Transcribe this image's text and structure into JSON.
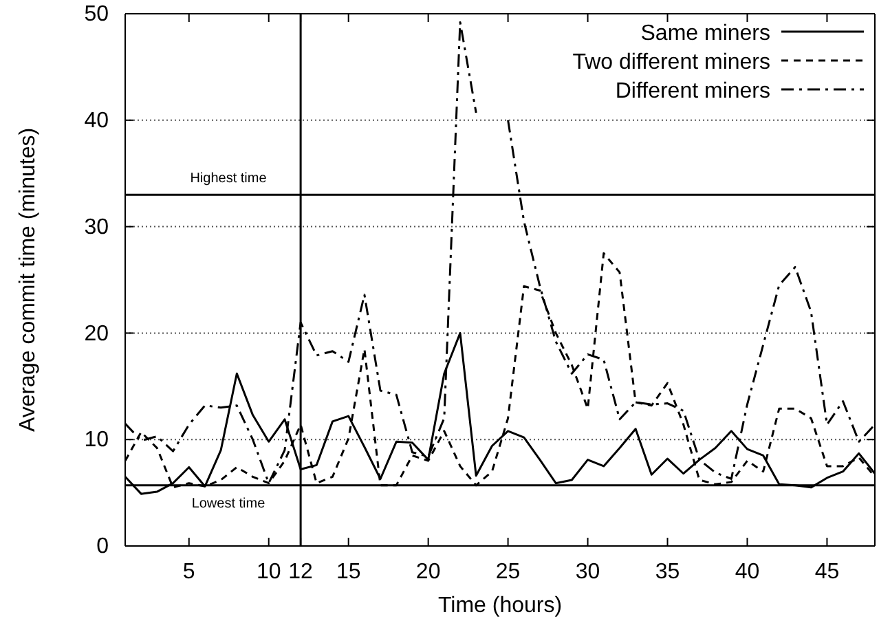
{
  "chart_data": {
    "type": "line",
    "xlabel": "Time (hours)",
    "ylabel": "Average commit time (minutes)",
    "x": [
      1,
      2,
      3,
      4,
      5,
      6,
      7,
      8,
      9,
      10,
      11,
      12,
      13,
      14,
      15,
      16,
      17,
      18,
      19,
      20,
      21,
      22,
      23,
      24,
      25,
      26,
      27,
      28,
      29,
      30,
      31,
      32,
      33,
      34,
      35,
      36,
      37,
      38,
      39,
      40,
      41,
      42,
      43,
      44,
      45,
      46,
      47,
      48
    ],
    "xlim": [
      1,
      48
    ],
    "xticks": [
      5,
      10,
      12,
      15,
      20,
      25,
      30,
      35,
      40,
      45
    ],
    "ylim": [
      0,
      50
    ],
    "yticks": [
      0,
      10,
      20,
      30,
      40,
      50
    ],
    "grid": "y",
    "legend": "top right",
    "series": [
      {
        "name": "Same miners",
        "color": "#000000",
        "line_style": "solid",
        "values": [
          6.5,
          4.9,
          5.1,
          5.9,
          7.4,
          5.6,
          9.0,
          16.2,
          12.3,
          9.8,
          11.9,
          7.2,
          7.6,
          11.7,
          12.2,
          9.3,
          6.3,
          9.8,
          9.7,
          8.1,
          16.2,
          20.0,
          6.6,
          9.4,
          10.8,
          10.2,
          8.1,
          5.9,
          6.2,
          8.1,
          7.5,
          9.2,
          11.0,
          6.7,
          8.2,
          6.8,
          8.1,
          9.2,
          10.8,
          9.1,
          8.5,
          5.8,
          5.7,
          5.5,
          6.4,
          7.0,
          8.7,
          6.8
        ]
      },
      {
        "name": "Two different miners",
        "color": "#000000",
        "line_style": "dashed",
        "values": [
          8.0,
          10.7,
          9.2,
          5.5,
          5.9,
          5.6,
          6.2,
          7.4,
          6.5,
          5.9,
          8.0,
          11.4,
          5.9,
          6.5,
          10.1,
          18.5,
          5.7,
          5.7,
          8.5,
          8.0,
          10.8,
          7.5,
          5.7,
          7.0,
          12.0,
          24.4,
          24.0,
          20.0,
          17.0,
          12.9,
          27.5,
          25.7,
          13.5,
          13.2,
          15.3,
          11.4,
          6.2,
          5.8,
          6.0,
          8.0,
          7.0,
          12.9,
          12.9,
          12.0,
          7.5,
          7.5,
          8.3,
          6.5
        ]
      },
      {
        "name": "Different miners",
        "color": "#000000",
        "line_style": "dashdot",
        "values": [
          11.5,
          9.9,
          10.3,
          8.9,
          11.4,
          13.2,
          13.0,
          13.2,
          10.0,
          5.9,
          9.0,
          21.0,
          17.9,
          18.3,
          17.3,
          23.6,
          14.6,
          14.2,
          8.8,
          8.4,
          12.0,
          49.2,
          40.7,
          null,
          40.0,
          30.5,
          24.4,
          19.2,
          16.2,
          18.0,
          17.5,
          11.9,
          13.5,
          13.3,
          13.4,
          12.7,
          8.1,
          6.9,
          6.3,
          13.3,
          18.9,
          24.5,
          26.2,
          22.0,
          11.4,
          13.6,
          9.8,
          11.4
        ]
      }
    ],
    "ref_lines": [
      {
        "axis": "y",
        "value": 33,
        "label": "Highest time"
      },
      {
        "axis": "y",
        "value": 5.7,
        "label": "Lowest time"
      },
      {
        "axis": "x",
        "value": 12,
        "label": null
      }
    ]
  }
}
